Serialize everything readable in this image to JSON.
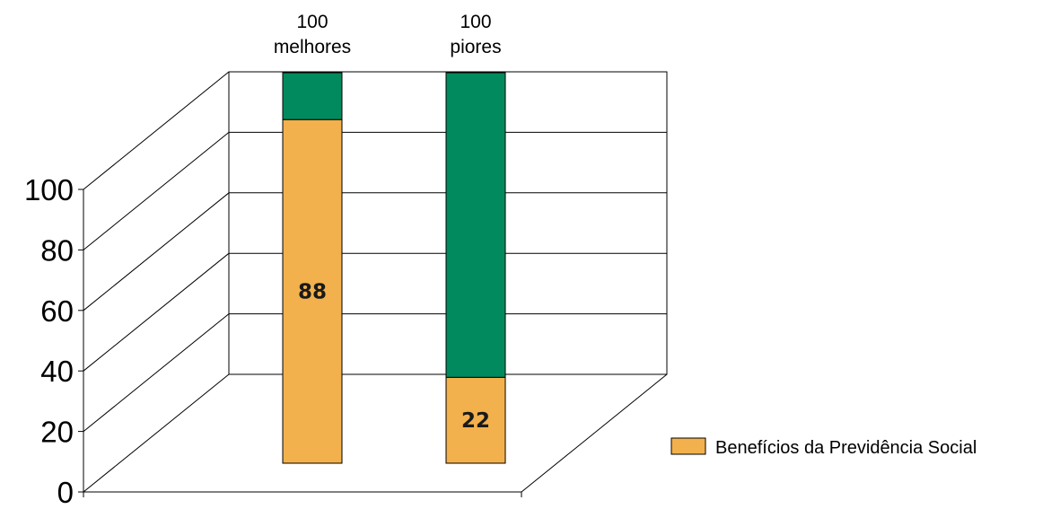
{
  "chart_data": {
    "type": "bar",
    "stacked": true,
    "three_d": true,
    "categories": [
      "100\nmelhores",
      "100\npiores"
    ],
    "series": [
      {
        "name": "Benefícios da Previdência Social",
        "values": [
          88,
          22
        ],
        "color": "#f2b14c"
      },
      {
        "values": [
          12,
          78
        ],
        "color": "#008a5e"
      }
    ],
    "data_labels": [
      "88",
      "22"
    ],
    "yticks": [
      "0",
      "20",
      "40",
      "60",
      "80",
      "100"
    ],
    "ylim": [
      0,
      100
    ],
    "grid": true,
    "legend_position": "right",
    "colors": {
      "primary": "#f2b14c",
      "secondary": "#008a5e",
      "axis": "#000000"
    }
  }
}
